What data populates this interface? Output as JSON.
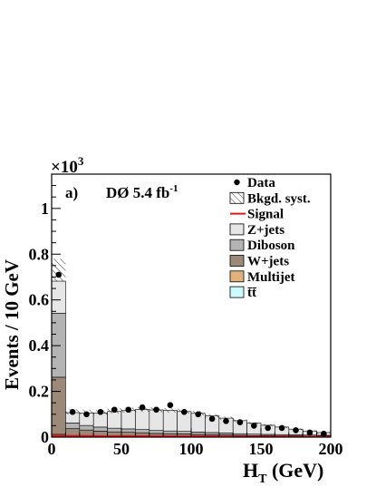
{
  "chart_data": {
    "type": "bar",
    "stacked": true,
    "panel_label": "a)",
    "experiment_label": "DØ 5.4 fb",
    "experiment_label_sup": "-1",
    "scale_label": "×10",
    "scale_label_sup": "3",
    "xlabel": "H",
    "xlabel_sub": "T",
    "xlabel_unit": " (GeV)",
    "ylabel": "Events / 10 GeV",
    "xlim": [
      0,
      200
    ],
    "ylim": [
      0,
      1.15
    ],
    "x_ticks": [
      0,
      50,
      100,
      150,
      200
    ],
    "y_ticks": [
      {
        "value": 0,
        "label": "0"
      },
      {
        "value": 0.2,
        "label": "0.2"
      },
      {
        "value": 0.4,
        "label": "0.4"
      },
      {
        "value": 0.6,
        "label": "0.6"
      },
      {
        "value": 0.8,
        "label": "0.8"
      },
      {
        "value": 1.0,
        "label": "1"
      }
    ],
    "bin_edges": [
      0,
      10,
      20,
      30,
      40,
      50,
      60,
      70,
      80,
      90,
      100,
      110,
      120,
      130,
      140,
      150,
      160,
      170,
      180,
      190,
      200
    ],
    "legend_position": "top-right",
    "legend": [
      {
        "label": "Data",
        "kind": "marker",
        "color": "#000000"
      },
      {
        "label": "Bkgd. syst.",
        "kind": "hatch",
        "color": "#000000"
      },
      {
        "label": "Signal",
        "kind": "line",
        "color": "#e8141c"
      },
      {
        "label": "Z+jets",
        "kind": "fill",
        "color": "#e6e6e6"
      },
      {
        "label": "Diboson",
        "kind": "fill",
        "color": "#b4b4b4"
      },
      {
        "label": "W+jets",
        "kind": "fill",
        "color": "#9b8a7a"
      },
      {
        "label": "Multijet",
        "kind": "fill",
        "color": "#e2b27e"
      },
      {
        "label": "t̄t̄",
        "kind": "fill",
        "color": "#ccfafc"
      }
    ],
    "series": [
      {
        "name": "tt̄",
        "color": "#ccfafc",
        "values": [
          0.002,
          0.002,
          0.002,
          0.002,
          0.002,
          0.002,
          0.002,
          0.002,
          0.002,
          0.002,
          0.001,
          0.001,
          0.001,
          0.001,
          0.001,
          0.001,
          0.001,
          0.001,
          0.001,
          0.001
        ]
      },
      {
        "name": "Multijet",
        "color": "#e2b27e",
        "values": [
          0.01,
          0.005,
          0.004,
          0.004,
          0.003,
          0.003,
          0.003,
          0.002,
          0.002,
          0.002,
          0.002,
          0.002,
          0.002,
          0.001,
          0.001,
          0.001,
          0.001,
          0.001,
          0.001,
          0.001
        ]
      },
      {
        "name": "W+jets",
        "color": "#9b8a7a",
        "values": [
          0.25,
          0.03,
          0.025,
          0.02,
          0.018,
          0.016,
          0.014,
          0.012,
          0.011,
          0.01,
          0.009,
          0.008,
          0.007,
          0.006,
          0.005,
          0.005,
          0.004,
          0.004,
          0.003,
          0.003
        ]
      },
      {
        "name": "Diboson",
        "color": "#b4b4b4",
        "values": [
          0.28,
          0.025,
          0.02,
          0.018,
          0.016,
          0.015,
          0.014,
          0.013,
          0.012,
          0.011,
          0.01,
          0.009,
          0.008,
          0.007,
          0.006,
          0.005,
          0.005,
          0.004,
          0.004,
          0.003
        ]
      },
      {
        "name": "Z+jets",
        "color": "#e6e6e6",
        "values": [
          0.14,
          0.045,
          0.054,
          0.062,
          0.073,
          0.08,
          0.088,
          0.09,
          0.09,
          0.087,
          0.082,
          0.073,
          0.065,
          0.057,
          0.048,
          0.04,
          0.033,
          0.025,
          0.018,
          0.012
        ]
      },
      {
        "name": "Signal",
        "color": "#e8141c",
        "values": [
          0.006,
          0.006,
          0.006,
          0.005,
          0.005,
          0.005,
          0.005,
          0.004,
          0.004,
          0.004,
          0.004,
          0.004,
          0.003,
          0.003,
          0.003,
          0.003,
          0.003,
          0.002,
          0.002,
          0.002
        ]
      }
    ],
    "bkgd_syst_band": {
      "low": [
        0.68,
        0.1,
        0.1,
        0.098,
        0.104,
        0.107,
        0.11,
        0.109,
        0.107,
        0.104,
        0.096,
        0.085,
        0.076,
        0.066,
        0.056,
        0.047,
        0.039,
        0.03,
        0.022,
        0.015
      ],
      "high": [
        0.78,
        0.122,
        0.12,
        0.118,
        0.126,
        0.129,
        0.132,
        0.13,
        0.127,
        0.124,
        0.114,
        0.101,
        0.09,
        0.078,
        0.066,
        0.057,
        0.047,
        0.038,
        0.03,
        0.023
      ]
    },
    "data_points": {
      "x": [
        5,
        15,
        25,
        35,
        45,
        55,
        65,
        75,
        85,
        95,
        105,
        115,
        125,
        135,
        145,
        155,
        165,
        175,
        185,
        195
      ],
      "y": [
        0.71,
        0.11,
        0.1,
        0.11,
        0.12,
        0.12,
        0.13,
        0.12,
        0.14,
        0.11,
        0.1,
        0.08,
        0.07,
        0.065,
        0.05,
        0.04,
        0.04,
        0.03,
        0.02,
        0.015
      ]
    }
  }
}
